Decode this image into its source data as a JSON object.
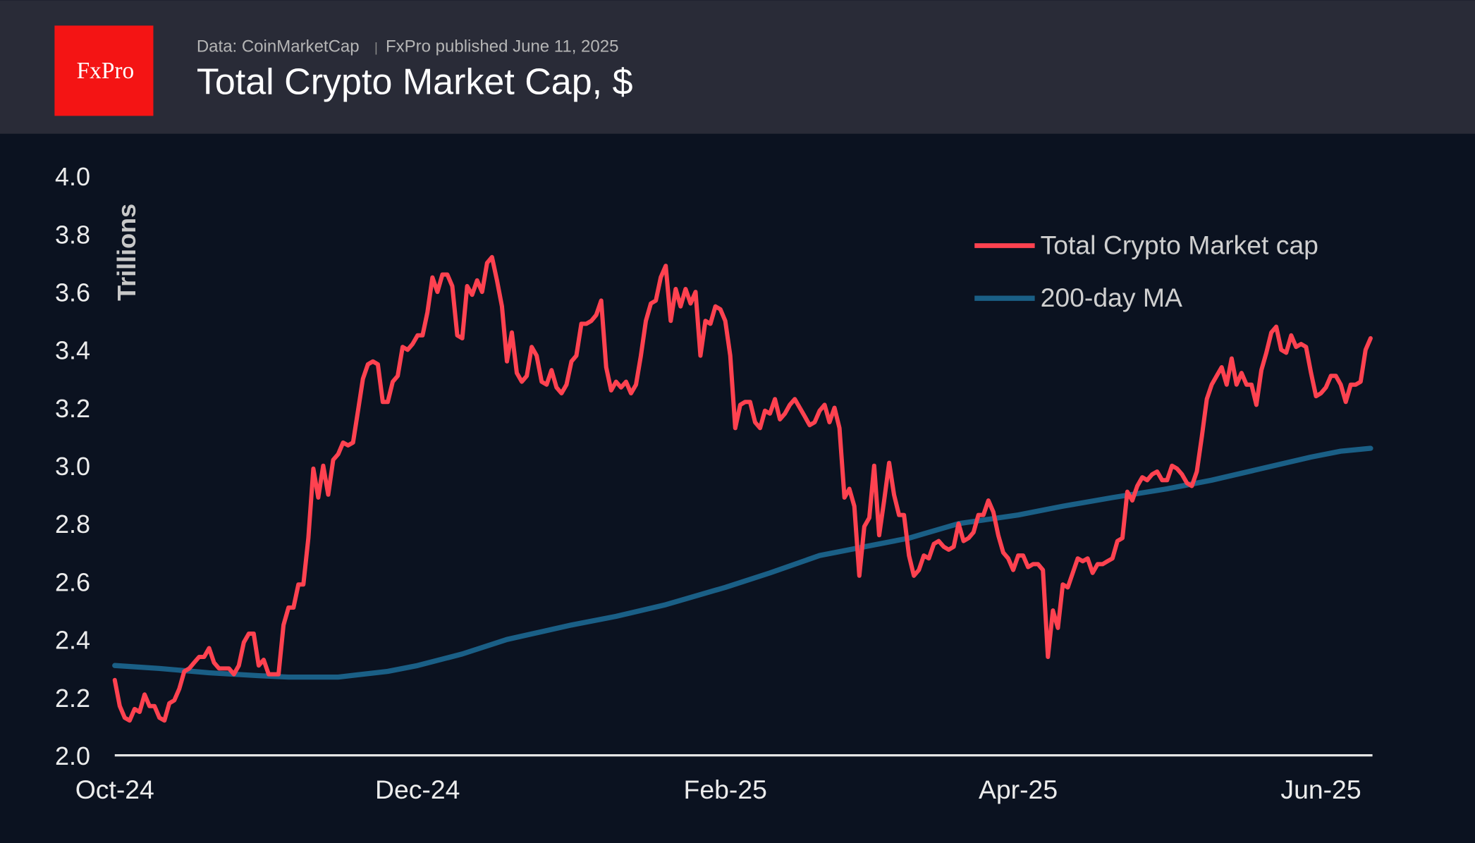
{
  "header": {
    "logo_text": "FxPro",
    "source": "Data: CoinMarketCap",
    "separator": "|",
    "published": "FxPro published June 11, 2025",
    "title": "Total Crypto Market Cap, $"
  },
  "colors": {
    "header_bg": "#292b37",
    "plot_bg": "#0b1220",
    "logo_bg": "#f41414",
    "market_cap": "#ff4250",
    "ma200": "#1a5f86"
  },
  "chart_data": {
    "type": "line",
    "title": "Total Crypto Market Cap, $",
    "ylabel": "Trillions",
    "xlabel": "",
    "ylim": [
      2.0,
      4.0
    ],
    "xlim": [
      "2024-10-01",
      "2025-06-11"
    ],
    "grid": false,
    "legend_position": "top-right",
    "y_ticks": [
      "2.0",
      "2.2",
      "2.4",
      "2.6",
      "2.8",
      "3.0",
      "3.2",
      "3.4",
      "3.6",
      "3.8",
      "4.0"
    ],
    "x_ticks": [
      {
        "label": "Oct-24",
        "date": "2024-10-01"
      },
      {
        "label": "Dec-24",
        "date": "2024-12-01"
      },
      {
        "label": "Feb-25",
        "date": "2025-02-01"
      },
      {
        "label": "Apr-25",
        "date": "2025-04-01"
      },
      {
        "label": "Jun-25",
        "date": "2025-06-01"
      }
    ],
    "series": [
      {
        "name": "Total Crypto Market cap",
        "color": "#ff4250",
        "monthly_values": {
          "2024-10": [
            2.26,
            2.17,
            2.13,
            2.12,
            2.16,
            2.15,
            2.21,
            2.17,
            2.17,
            2.13,
            2.12,
            2.18,
            2.19,
            2.23,
            2.29,
            2.3,
            2.32,
            2.34,
            2.34,
            2.37,
            2.32,
            2.3,
            2.3,
            2.3,
            2.28,
            2.31,
            2.39,
            2.42,
            2.42,
            2.31,
            2.33
          ],
          "2024-11": [
            2.28,
            2.28,
            2.28,
            2.45,
            2.51,
            2.51,
            2.59,
            2.59,
            2.75,
            2.99,
            2.89,
            3.0,
            2.9,
            3.02,
            3.04,
            3.08,
            3.07,
            3.08,
            3.19,
            3.3,
            3.35,
            3.36,
            3.35,
            3.22,
            3.22,
            3.29,
            3.31,
            3.41,
            3.4,
            3.42
          ],
          "2024-12": [
            3.45,
            3.45,
            3.53,
            3.65,
            3.6,
            3.66,
            3.66,
            3.62,
            3.45,
            3.44,
            3.62,
            3.59,
            3.64,
            3.6,
            3.7,
            3.72,
            3.64,
            3.55,
            3.36,
            3.46,
            3.32,
            3.29,
            3.31,
            3.41,
            3.38,
            3.29,
            3.28,
            3.33,
            3.27,
            3.25,
            3.28
          ],
          "2025-01": [
            3.36,
            3.38,
            3.49,
            3.49,
            3.5,
            3.52,
            3.57,
            3.34,
            3.26,
            3.29,
            3.27,
            3.29,
            3.25,
            3.28,
            3.38,
            3.5,
            3.56,
            3.57,
            3.65,
            3.69,
            3.5,
            3.61,
            3.55,
            3.61,
            3.56,
            3.6,
            3.38,
            3.5,
            3.49,
            3.55,
            3.54
          ],
          "2025-02": [
            3.5,
            3.38,
            3.13,
            3.21,
            3.22,
            3.22,
            3.15,
            3.13,
            3.19,
            3.18,
            3.23,
            3.16,
            3.18,
            3.21,
            3.23,
            3.2,
            3.17,
            3.14,
            3.15,
            3.19,
            3.21,
            3.15,
            3.2,
            3.13,
            2.89,
            2.92,
            2.86,
            2.62
          ],
          "2025-03": [
            2.79,
            2.82,
            3.0,
            2.76,
            2.88,
            3.01,
            2.9,
            2.83,
            2.83,
            2.69,
            2.62,
            2.64,
            2.69,
            2.68,
            2.73,
            2.74,
            2.72,
            2.71,
            2.72,
            2.8,
            2.74,
            2.75,
            2.77,
            2.83,
            2.83,
            2.88,
            2.84,
            2.76,
            2.7,
            2.68,
            2.64
          ],
          "2025-04": [
            2.69,
            2.69,
            2.65,
            2.66,
            2.66,
            2.64,
            2.34,
            2.5,
            2.44,
            2.59,
            2.58,
            2.63,
            2.68,
            2.67,
            2.68,
            2.63,
            2.66,
            2.66,
            2.67,
            2.68,
            2.74,
            2.75,
            2.91,
            2.88,
            2.93,
            2.96,
            2.95,
            2.97,
            2.98,
            2.95
          ],
          "2025-05": [
            2.95,
            3.0,
            2.99,
            2.97,
            2.94,
            2.93,
            2.98,
            3.1,
            3.23,
            3.28,
            3.31,
            3.34,
            3.28,
            3.37,
            3.28,
            3.32,
            3.28,
            3.28,
            3.21,
            3.33,
            3.39,
            3.46,
            3.48,
            3.4,
            3.39,
            3.45,
            3.41,
            3.42,
            3.41,
            3.32,
            3.24
          ],
          "2025-06": [
            3.25,
            3.27,
            3.31,
            3.31,
            3.28,
            3.22,
            3.28,
            3.28,
            3.29,
            3.4,
            3.44
          ]
        }
      },
      {
        "name": "200-day MA",
        "color": "#1a5f86",
        "points": [
          [
            "2024-10-01",
            2.31
          ],
          [
            "2024-10-10",
            2.3
          ],
          [
            "2024-10-20",
            2.285
          ],
          [
            "2024-10-30",
            2.275
          ],
          [
            "2024-11-05",
            2.27
          ],
          [
            "2024-11-15",
            2.27
          ],
          [
            "2024-11-25",
            2.29
          ],
          [
            "2024-12-01",
            2.31
          ],
          [
            "2024-12-10",
            2.35
          ],
          [
            "2024-12-19",
            2.4
          ],
          [
            "2025-01-01",
            2.45
          ],
          [
            "2025-01-10",
            2.48
          ],
          [
            "2025-01-20",
            2.52
          ],
          [
            "2025-02-01",
            2.58
          ],
          [
            "2025-02-10",
            2.63
          ],
          [
            "2025-02-20",
            2.69
          ],
          [
            "2025-03-01",
            2.72
          ],
          [
            "2025-03-10",
            2.75
          ],
          [
            "2025-03-20",
            2.8
          ],
          [
            "2025-04-01",
            2.83
          ],
          [
            "2025-04-10",
            2.86
          ],
          [
            "2025-04-20",
            2.89
          ],
          [
            "2025-05-01",
            2.92
          ],
          [
            "2025-05-10",
            2.95
          ],
          [
            "2025-05-20",
            2.99
          ],
          [
            "2025-05-30",
            3.03
          ],
          [
            "2025-06-05",
            3.05
          ],
          [
            "2025-06-11",
            3.06
          ]
        ]
      }
    ]
  }
}
